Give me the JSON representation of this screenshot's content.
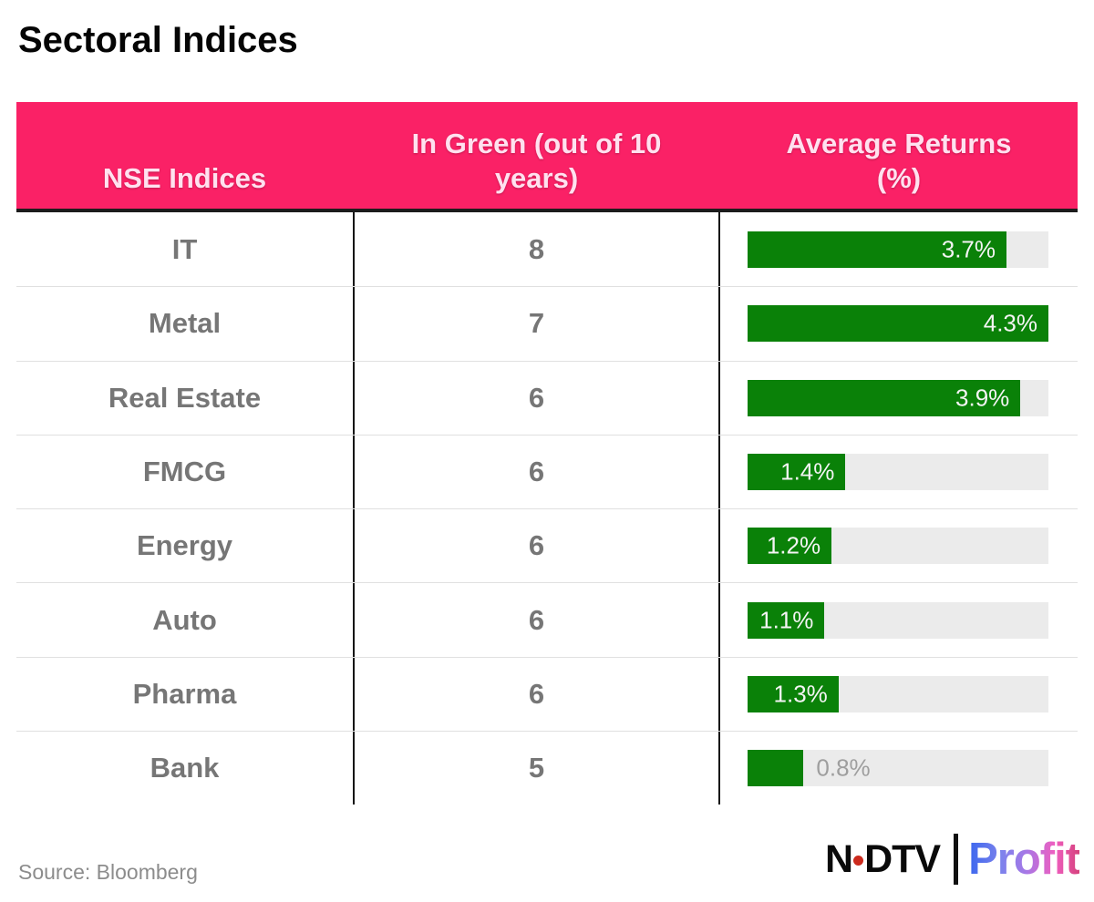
{
  "logo": {
    "ndtv_n": "N",
    "ndtv_rest": "DTV",
    "profit": "Profit"
  },
  "colors": {
    "header_pink": "#fa2166",
    "header_text": "#ffe1ef",
    "bar_green": "#0a8108",
    "bar_track_gray": "#ebebeb",
    "row_text_gray": "#767676",
    "outside_label_gray": "#9e9e9e",
    "ndtv_dot_red": "#cc2a1d",
    "profit_gradient_start": "#3a67ee",
    "profit_gradient_end": "#d6417c"
  },
  "chart_data": {
    "type": "bar",
    "orientation": "horizontal",
    "title": "Sectoral Indices",
    "source": "Source: Bloomberg",
    "columns": [
      "NSE Indices",
      "In Green (out of 10 years)",
      "Average Returns (%)"
    ],
    "categories": [
      "IT",
      "Metal",
      "Real Estate",
      "FMCG",
      "Energy",
      "Auto",
      "Pharma",
      "Bank"
    ],
    "series": [
      {
        "name": "In Green (out of 10 years)",
        "values": [
          8,
          7,
          6,
          6,
          6,
          6,
          6,
          5
        ]
      },
      {
        "name": "Average Returns (%)",
        "values": [
          3.7,
          4.3,
          3.9,
          1.4,
          1.2,
          1.1,
          1.3,
          0.8
        ]
      }
    ],
    "bar_labels": [
      "3.7%",
      "4.3%",
      "3.9%",
      "1.4%",
      "1.2%",
      "1.1%",
      "1.3%",
      "0.8%"
    ],
    "bar_axis_max": 4.3,
    "legend": "none",
    "grid": "off"
  }
}
